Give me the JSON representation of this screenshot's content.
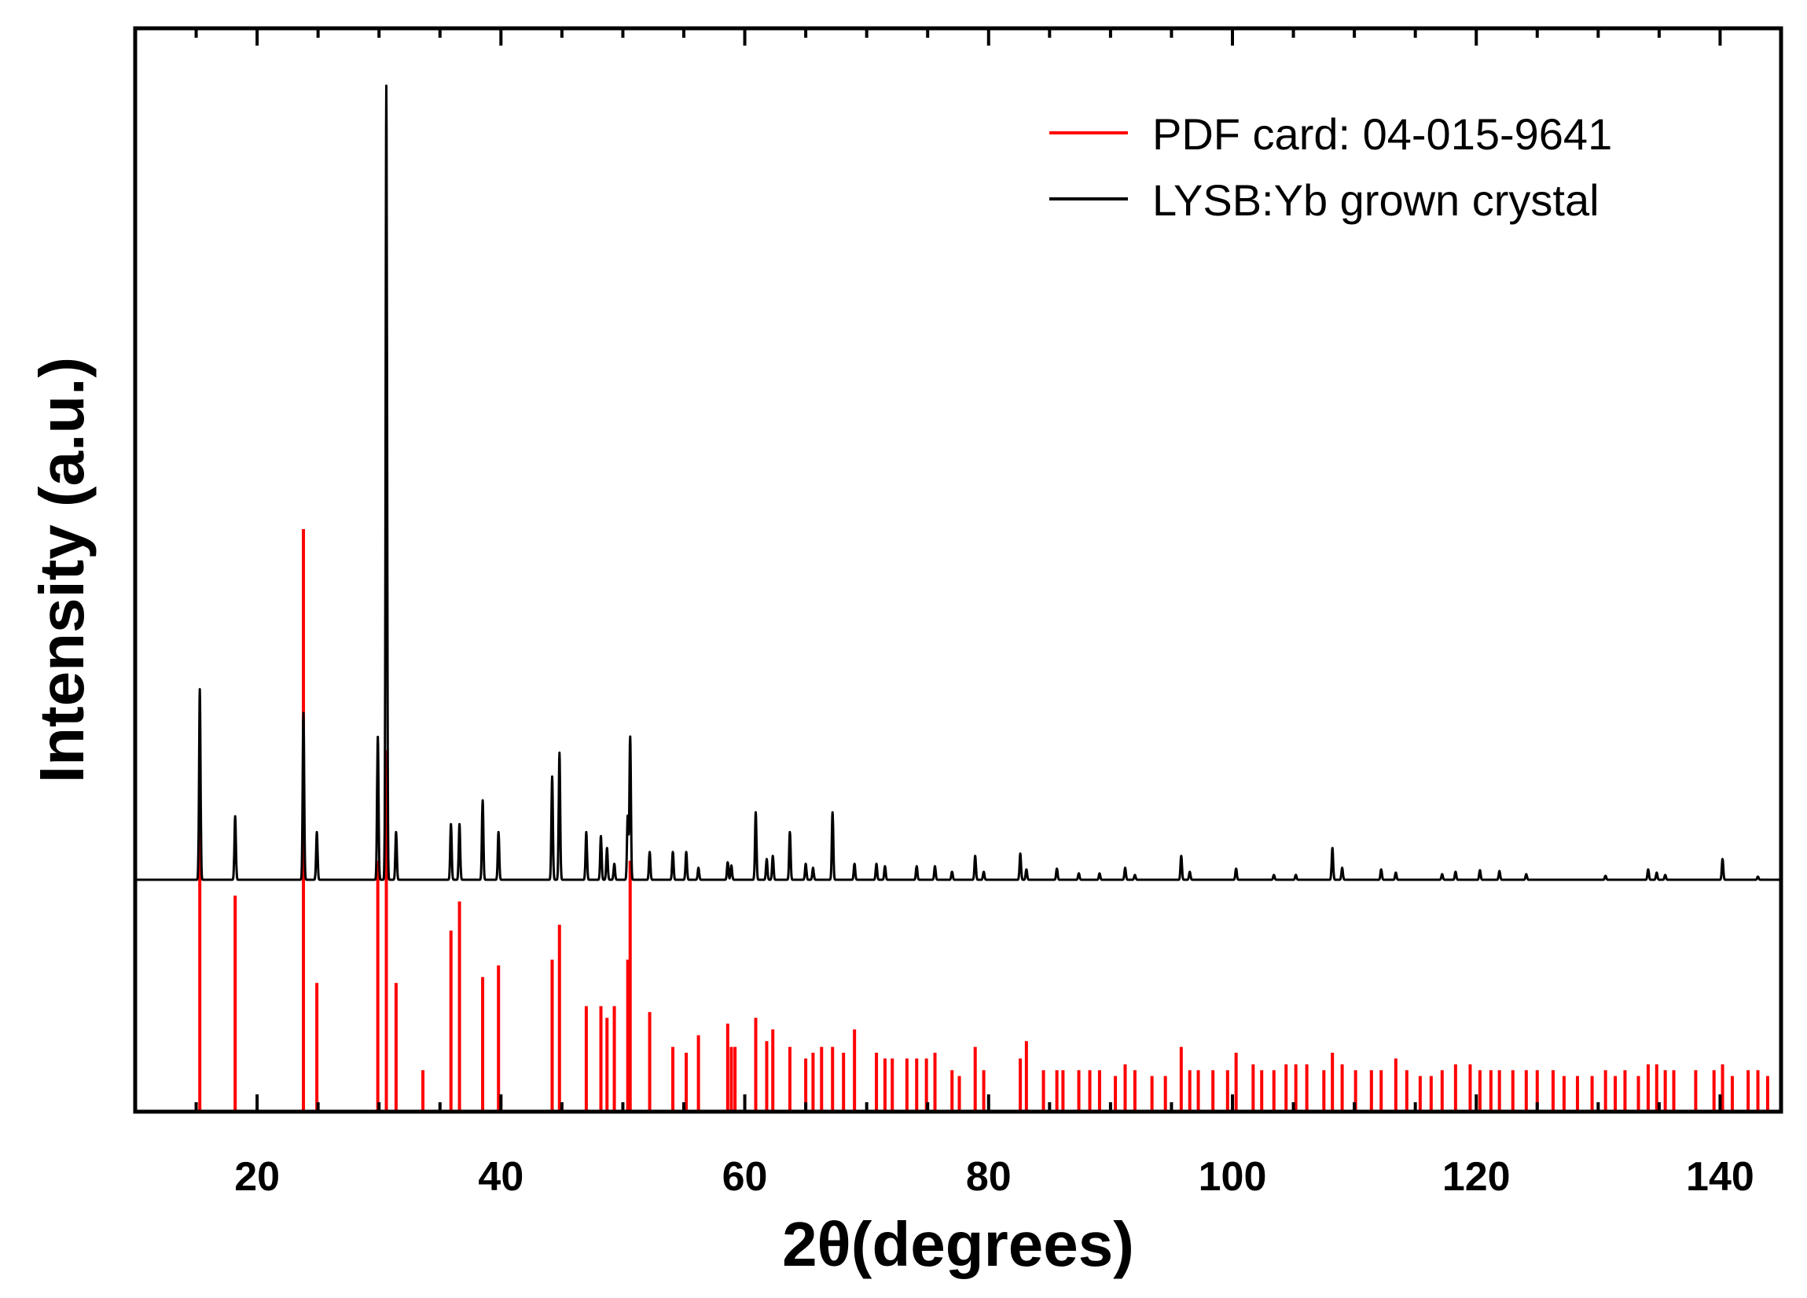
{
  "chart_data": {
    "type": "line",
    "title": "",
    "xlabel": "2θ(degrees)",
    "ylabel": "Intensity (a.u.)",
    "xlim": [
      10,
      145
    ],
    "xticks": [
      20,
      40,
      60,
      80,
      100,
      120,
      140
    ],
    "xtick_labels": [
      "20",
      "40",
      "60",
      "80",
      "100",
      "120",
      "140"
    ],
    "y_units": "arbitrary (relative, 0-100)",
    "legend_position": "top-right",
    "series": [
      {
        "name": "PDF card: 04-015-9641",
        "color": "#ff0000",
        "style": "stick",
        "peaks": [
          [
            15.3,
            52
          ],
          [
            18.2,
            37
          ],
          [
            23.8,
            100
          ],
          [
            24.9,
            22
          ],
          [
            29.9,
            43
          ],
          [
            30.6,
            62
          ],
          [
            31.4,
            22
          ],
          [
            33.6,
            7
          ],
          [
            35.9,
            31
          ],
          [
            36.6,
            36
          ],
          [
            38.5,
            23
          ],
          [
            39.8,
            25
          ],
          [
            44.2,
            26
          ],
          [
            44.8,
            32
          ],
          [
            47.0,
            18
          ],
          [
            48.2,
            18
          ],
          [
            48.7,
            16
          ],
          [
            49.3,
            18
          ],
          [
            50.4,
            26
          ],
          [
            50.6,
            43
          ],
          [
            52.2,
            17
          ],
          [
            54.1,
            11
          ],
          [
            55.2,
            10
          ],
          [
            56.2,
            13
          ],
          [
            58.6,
            15
          ],
          [
            58.9,
            11
          ],
          [
            59.2,
            11
          ],
          [
            60.9,
            16
          ],
          [
            61.8,
            12
          ],
          [
            62.3,
            14
          ],
          [
            63.7,
            11
          ],
          [
            65.0,
            9
          ],
          [
            65.6,
            10
          ],
          [
            66.3,
            11
          ],
          [
            67.2,
            11
          ],
          [
            68.1,
            10
          ],
          [
            69.0,
            14
          ],
          [
            70.8,
            10
          ],
          [
            71.5,
            9
          ],
          [
            72.1,
            9
          ],
          [
            73.3,
            9
          ],
          [
            74.1,
            9
          ],
          [
            74.9,
            9
          ],
          [
            75.6,
            10
          ],
          [
            77.0,
            7
          ],
          [
            77.6,
            6
          ],
          [
            78.9,
            11
          ],
          [
            79.6,
            7
          ],
          [
            82.6,
            9
          ],
          [
            83.1,
            12
          ],
          [
            84.5,
            7
          ],
          [
            85.6,
            7
          ],
          [
            86.1,
            7
          ],
          [
            87.4,
            7
          ],
          [
            88.3,
            7
          ],
          [
            89.1,
            7
          ],
          [
            90.4,
            6
          ],
          [
            91.2,
            8
          ],
          [
            92.0,
            7
          ],
          [
            93.4,
            6
          ],
          [
            94.5,
            6
          ],
          [
            95.8,
            11
          ],
          [
            96.5,
            7
          ],
          [
            97.2,
            7
          ],
          [
            98.4,
            7
          ],
          [
            99.6,
            7
          ],
          [
            100.3,
            10
          ],
          [
            101.7,
            8
          ],
          [
            102.4,
            7
          ],
          [
            103.4,
            7
          ],
          [
            104.4,
            8
          ],
          [
            105.2,
            8
          ],
          [
            106.1,
            8
          ],
          [
            107.5,
            7
          ],
          [
            108.2,
            10
          ],
          [
            109.0,
            8
          ],
          [
            110.1,
            7
          ],
          [
            111.4,
            7
          ],
          [
            112.2,
            7
          ],
          [
            113.4,
            9
          ],
          [
            114.3,
            7
          ],
          [
            115.4,
            6
          ],
          [
            116.3,
            6
          ],
          [
            117.2,
            7
          ],
          [
            118.3,
            8
          ],
          [
            119.5,
            8
          ],
          [
            120.3,
            7
          ],
          [
            121.2,
            7
          ],
          [
            121.9,
            7
          ],
          [
            123.0,
            7
          ],
          [
            124.1,
            7
          ],
          [
            125.0,
            7
          ],
          [
            126.3,
            7
          ],
          [
            127.2,
            6
          ],
          [
            128.3,
            6
          ],
          [
            129.5,
            6
          ],
          [
            130.6,
            7
          ],
          [
            131.4,
            6
          ],
          [
            132.2,
            7
          ],
          [
            133.3,
            6
          ],
          [
            134.1,
            8
          ],
          [
            134.8,
            8
          ],
          [
            135.5,
            7
          ],
          [
            136.2,
            7
          ],
          [
            138.0,
            7
          ],
          [
            139.5,
            7
          ],
          [
            140.2,
            8
          ],
          [
            141.0,
            6
          ],
          [
            142.3,
            7
          ],
          [
            143.1,
            7
          ],
          [
            143.9,
            6
          ]
        ]
      },
      {
        "name": "LYSB:Yb grown crystal",
        "color": "#000000",
        "style": "line",
        "baseline": 0,
        "peaks": [
          [
            15.3,
            24
          ],
          [
            18.2,
            8
          ],
          [
            23.8,
            21
          ],
          [
            24.9,
            6
          ],
          [
            29.9,
            18
          ],
          [
            30.6,
            100
          ],
          [
            31.4,
            6
          ],
          [
            35.9,
            7
          ],
          [
            36.6,
            7
          ],
          [
            38.5,
            10
          ],
          [
            39.8,
            6
          ],
          [
            44.2,
            13
          ],
          [
            44.8,
            16
          ],
          [
            47.0,
            6
          ],
          [
            48.2,
            5.5
          ],
          [
            48.7,
            4
          ],
          [
            49.3,
            2
          ],
          [
            50.4,
            8
          ],
          [
            50.6,
            18
          ],
          [
            52.2,
            3.5
          ],
          [
            54.1,
            3.5
          ],
          [
            55.2,
            3.5
          ],
          [
            56.2,
            1.5
          ],
          [
            58.6,
            2.2
          ],
          [
            58.9,
            1.8
          ],
          [
            60.9,
            8.5
          ],
          [
            61.8,
            2.6
          ],
          [
            62.3,
            3
          ],
          [
            63.7,
            6
          ],
          [
            65.0,
            2
          ],
          [
            65.6,
            1.5
          ],
          [
            67.2,
            8.5
          ],
          [
            69.0,
            2
          ],
          [
            70.8,
            2
          ],
          [
            71.5,
            1.7
          ],
          [
            74.1,
            1.7
          ],
          [
            75.6,
            1.7
          ],
          [
            77.0,
            1
          ],
          [
            78.9,
            3
          ],
          [
            79.6,
            1
          ],
          [
            82.6,
            3.3
          ],
          [
            83.1,
            1.3
          ],
          [
            85.6,
            1.4
          ],
          [
            87.4,
            0.8
          ],
          [
            89.1,
            0.8
          ],
          [
            91.2,
            1.5
          ],
          [
            92.0,
            0.6
          ],
          [
            95.8,
            3
          ],
          [
            96.5,
            1
          ],
          [
            100.3,
            1.4
          ],
          [
            103.4,
            0.6
          ],
          [
            105.2,
            0.6
          ],
          [
            108.2,
            4
          ],
          [
            109.0,
            1.5
          ],
          [
            112.2,
            1.3
          ],
          [
            113.4,
            0.9
          ],
          [
            117.2,
            0.7
          ],
          [
            118.3,
            1
          ],
          [
            120.3,
            1.2
          ],
          [
            121.9,
            1.1
          ],
          [
            124.1,
            0.7
          ],
          [
            130.6,
            0.5
          ],
          [
            134.1,
            1.3
          ],
          [
            134.8,
            0.9
          ],
          [
            135.5,
            0.6
          ],
          [
            140.2,
            2.6
          ],
          [
            143.1,
            0.4
          ]
        ]
      }
    ]
  }
}
